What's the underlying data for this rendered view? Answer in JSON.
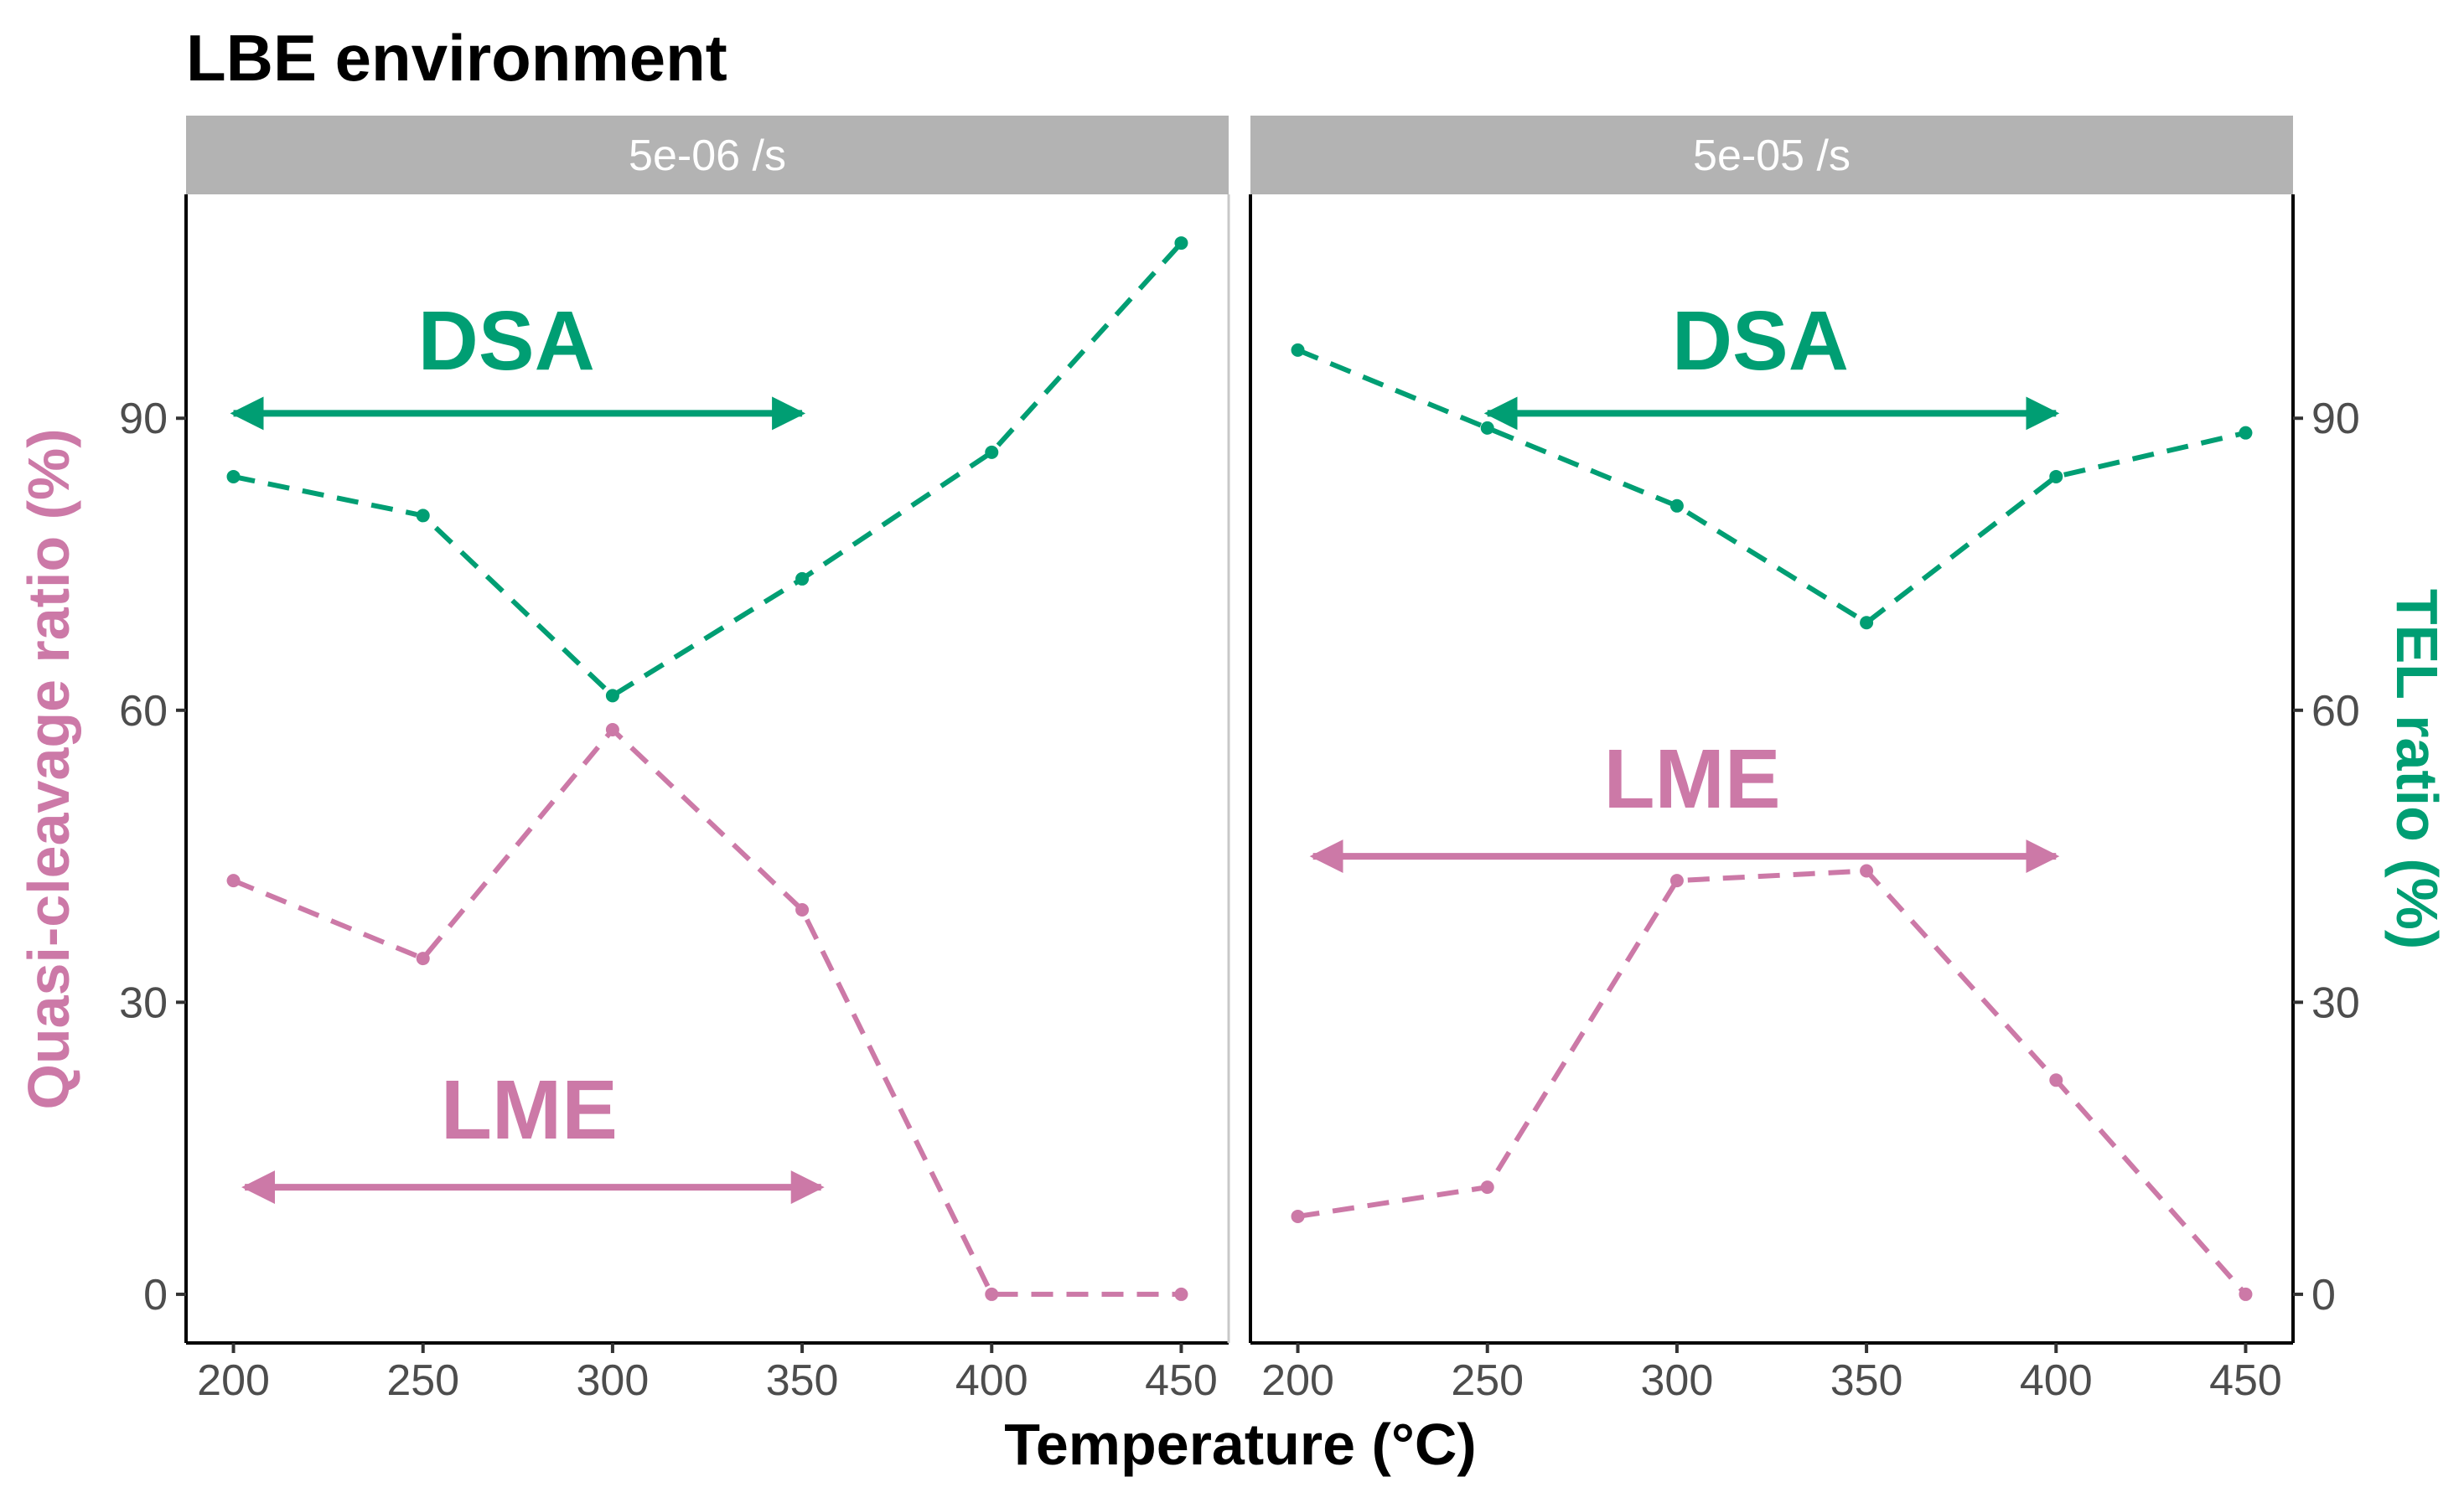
{
  "chart_data": {
    "type": "line",
    "title": "LBE environment",
    "xlabel": "Temperature (°C)",
    "ylabel_left": "Quasi-cleavage ratio (%)",
    "ylabel_right": "TEL ratio (%)",
    "xlim": [
      187.5,
      462.5
    ],
    "ylim": [
      -5,
      113
    ],
    "x_ticks": [
      200,
      250,
      300,
      350,
      400,
      450
    ],
    "y_ticks": [
      0,
      30,
      60,
      90
    ],
    "colors": {
      "quasi": "#cc79a7",
      "tel": "#009e73",
      "strip": "#b3b3b3"
    },
    "panels": [
      {
        "strip": "5e-06 /s",
        "series": [
          {
            "name": "Quasi-cleavage ratio",
            "color": "#cc79a7",
            "x": [
              200,
              250,
              300,
              350,
              400,
              450
            ],
            "y": [
              42.5,
              34.5,
              58,
              39.5,
              0,
              0
            ]
          },
          {
            "name": "TEL ratio",
            "color": "#009e73",
            "x": [
              200,
              250,
              300,
              350,
              400,
              450
            ],
            "y": [
              84,
              80,
              61.5,
              73.5,
              86.5,
              108
            ]
          }
        ],
        "annotations": [
          {
            "text": "DSA",
            "color": "#009e73",
            "x_start": 200,
            "x_end": 350,
            "y": 90.5,
            "text_x": 272,
            "text_y": 95
          },
          {
            "text": "LME",
            "color": "#cc79a7",
            "x_start": 203,
            "x_end": 355,
            "y": 11,
            "text_x": 278,
            "text_y": 16
          }
        ]
      },
      {
        "strip": "5e-05 /s",
        "series": [
          {
            "name": "Quasi-cleavage ratio",
            "color": "#cc79a7",
            "x": [
              200,
              250,
              300,
              350,
              400,
              450
            ],
            "y": [
              8,
              11,
              42.5,
              43.5,
              22,
              0
            ]
          },
          {
            "name": "TEL ratio",
            "color": "#009e73",
            "x": [
              200,
              250,
              300,
              350,
              400,
              450
            ],
            "y": [
              97,
              89,
              81,
              69,
              84,
              88.5
            ]
          }
        ],
        "annotations": [
          {
            "text": "DSA",
            "color": "#009e73",
            "x_start": 250,
            "x_end": 400,
            "y": 90.5,
            "text_x": 322,
            "text_y": 95
          },
          {
            "text": "LME",
            "color": "#cc79a7",
            "x_start": 204,
            "x_end": 400,
            "y": 45,
            "text_x": 304,
            "text_y": 50
          }
        ]
      }
    ]
  }
}
